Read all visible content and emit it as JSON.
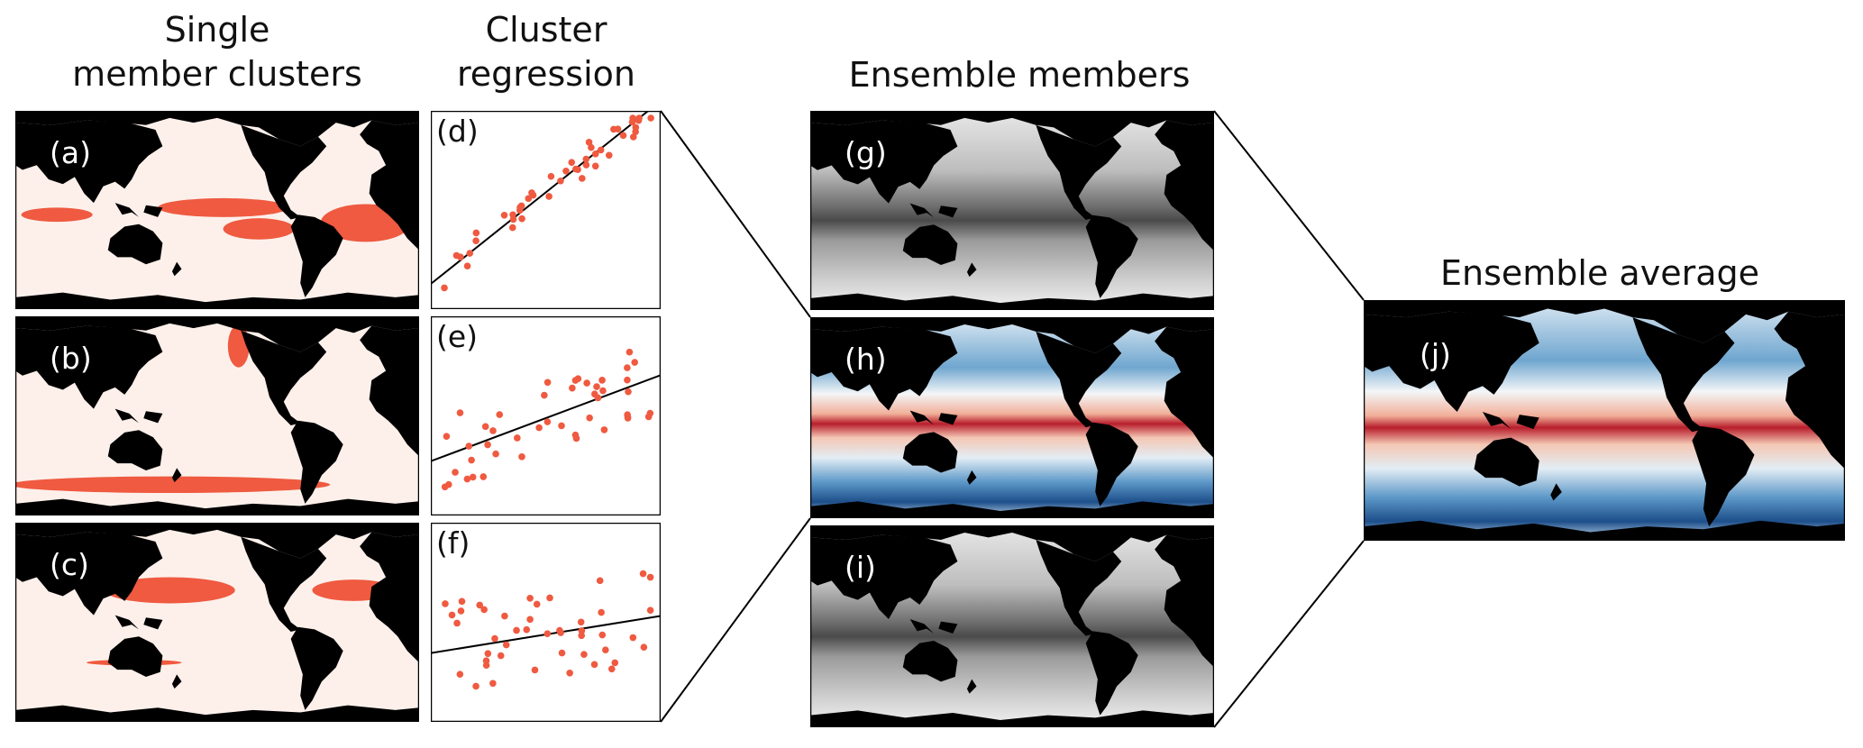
{
  "headers": [
    [
      "Single",
      "member clusters"
    ],
    [
      "Cluster",
      "regression"
    ],
    [
      "Ensemble members"
    ],
    [
      "Ensemble average"
    ]
  ],
  "panels": [
    "(a)",
    "(b)",
    "(c)",
    "(d)",
    "(e)",
    "(f)",
    "(g)",
    "(h)",
    "(i)",
    "(j)"
  ]
}
